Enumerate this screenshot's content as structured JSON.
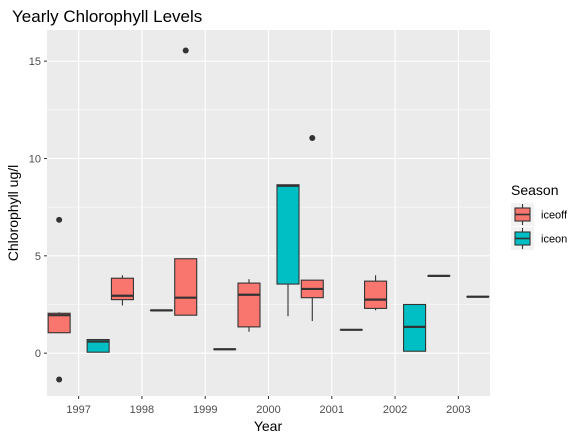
{
  "chart_data": {
    "type": "boxplot",
    "title": "Yearly Chlorophyll Levels",
    "xlabel": "Year",
    "ylabel": "Chlorophyll ug/l",
    "categories": [
      "1997",
      "1998",
      "1999",
      "2000",
      "2001",
      "2002",
      "2003"
    ],
    "ylim": [
      -2.2,
      16.6
    ],
    "yticks": [
      0,
      5,
      10,
      15
    ],
    "grid": true,
    "legend": {
      "title": "Season",
      "position": "right",
      "entries": [
        {
          "name": "iceoff",
          "color": "#F8766D"
        },
        {
          "name": "iceon",
          "color": "#00BFC4"
        }
      ]
    },
    "series": [
      {
        "name": "iceoff",
        "color": "#F8766D",
        "boxes": [
          {
            "category": "1997",
            "q1": 1.05,
            "median": 1.95,
            "q3": 2.05,
            "whisker_low": 1.05,
            "whisker_high": 2.1,
            "outliers": [
              6.85,
              -1.35
            ]
          },
          {
            "category": "1998",
            "q1": 2.75,
            "median": 2.95,
            "q3": 3.85,
            "whisker_low": 2.45,
            "whisker_high": 4.0,
            "outliers": []
          },
          {
            "category": "1999",
            "q1": 1.95,
            "median": 2.85,
            "q3": 4.85,
            "whisker_low": 1.95,
            "whisker_high": 4.85,
            "outliers": [
              15.55
            ]
          },
          {
            "category": "2000",
            "q1": 1.35,
            "median": 3.0,
            "q3": 3.6,
            "whisker_low": 1.1,
            "whisker_high": 3.8,
            "outliers": []
          },
          {
            "category": "2001",
            "q1": 2.85,
            "median": 3.3,
            "q3": 3.75,
            "whisker_low": 1.65,
            "whisker_high": 3.75,
            "outliers": [
              11.05
            ]
          },
          {
            "category": "2002",
            "q1": 2.3,
            "median": 2.75,
            "q3": 3.7,
            "whisker_low": 2.2,
            "whisker_high": 4.0,
            "outliers": []
          },
          {
            "category": "2003",
            "q1": 3.97,
            "median": 3.97,
            "q3": 3.97,
            "whisker_low": 3.97,
            "whisker_high": 3.97,
            "outliers": []
          }
        ]
      },
      {
        "name": "iceon",
        "color": "#00BFC4",
        "boxes": [
          {
            "category": "1997",
            "q1": 0.05,
            "median": 0.6,
            "q3": 0.7,
            "whisker_low": 0.05,
            "whisker_high": 0.7,
            "outliers": []
          },
          {
            "category": "1998",
            "q1": 2.2,
            "median": 2.2,
            "q3": 2.2,
            "whisker_low": 2.2,
            "whisker_high": 2.2,
            "outliers": []
          },
          {
            "category": "1999",
            "q1": 0.2,
            "median": 0.2,
            "q3": 0.2,
            "whisker_low": 0.2,
            "whisker_high": 0.2,
            "outliers": []
          },
          {
            "category": "2000",
            "q1": 3.55,
            "median": 8.6,
            "q3": 8.65,
            "whisker_low": 1.9,
            "whisker_high": 8.65,
            "outliers": []
          },
          {
            "category": "2001",
            "q1": 1.2,
            "median": 1.2,
            "q3": 1.2,
            "whisker_low": 1.2,
            "whisker_high": 1.2,
            "outliers": []
          },
          {
            "category": "2002",
            "q1": 0.1,
            "median": 1.35,
            "q3": 2.5,
            "whisker_low": 0.1,
            "whisker_high": 2.5,
            "outliers": []
          },
          {
            "category": "2003",
            "q1": 2.9,
            "median": 2.9,
            "q3": 2.9,
            "whisker_low": 2.9,
            "whisker_high": 2.9,
            "outliers": []
          }
        ]
      }
    ]
  }
}
